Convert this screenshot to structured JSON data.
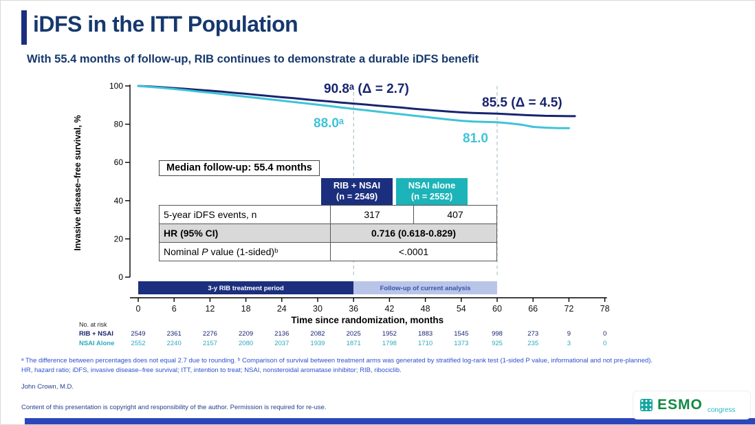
{
  "slide": {
    "title": "iDFS in the ITT Population",
    "subtitle": "With 55.4 months of follow-up, RIB continues to demonstrate a durable iDFS benefit",
    "footnotes": {
      "line1": "ᵃ The difference between percentages does not equal 2.7 due to rounding. ᵇ Comparison of survival between treatment arms was generated by stratified log-rank test (1-sided P value, informational and not pre-planned).",
      "line2": "HR, hazard ratio; iDFS, invasive disease–free survival; ITT, intention to treat; NSAI, nonsteroidal aromatase inhibitor; RIB, ribociclib."
    },
    "author": "John Crown, M.D.",
    "copyright": "Content of this presentation is copyright and responsibility of the author. Permission is required for re-use."
  },
  "summary_table": {
    "median_followup": "Median follow-up: 55.4 months",
    "columns": [
      {
        "name": "RIB + NSAI",
        "n": "(n = 2549)",
        "color": "#1b2f7e"
      },
      {
        "name": "NSAI alone",
        "n": "(n = 2552)",
        "color": "#1cb4b8"
      }
    ],
    "rows": {
      "events": {
        "label": "5-year iDFS events, n",
        "rib": "317",
        "nsai": "407"
      },
      "hr": {
        "label": "HR (95% CI)",
        "value": "0.716 (0.618-0.829)"
      },
      "pvalue": {
        "label_pre": "Nominal ",
        "label_italic": "P",
        "label_post": " value (1-sided)ᵇ",
        "value": "<.0001"
      }
    }
  },
  "chart_data": {
    "type": "line",
    "title": "Kaplan-Meier iDFS curves, ITT population",
    "xlabel": "Time since randomization, months",
    "ylabel": "Invasive disease–free survival, %",
    "xlim": [
      0,
      78
    ],
    "ylim": [
      0,
      100
    ],
    "x_ticks": [
      0,
      6,
      12,
      18,
      24,
      30,
      36,
      42,
      48,
      54,
      60,
      66,
      72,
      78
    ],
    "y_ticks": [
      0,
      20,
      40,
      60,
      80,
      100
    ],
    "landmark_months": [
      36,
      60
    ],
    "series": [
      {
        "name": "RIB + NSAI",
        "color": "#18246e",
        "points": [
          [
            0,
            100
          ],
          [
            2,
            99.7
          ],
          [
            4,
            99.3
          ],
          [
            6,
            98.9
          ],
          [
            8,
            98.5
          ],
          [
            10,
            98.0
          ],
          [
            12,
            97.5
          ],
          [
            14,
            97.0
          ],
          [
            16,
            96.4
          ],
          [
            18,
            95.9
          ],
          [
            20,
            95.3
          ],
          [
            22,
            94.7
          ],
          [
            24,
            94.1
          ],
          [
            26,
            93.6
          ],
          [
            28,
            93.0
          ],
          [
            30,
            92.4
          ],
          [
            32,
            91.9
          ],
          [
            34,
            91.3
          ],
          [
            36,
            90.8
          ],
          [
            38,
            90.3
          ],
          [
            40,
            89.7
          ],
          [
            42,
            89.2
          ],
          [
            44,
            88.7
          ],
          [
            46,
            88.1
          ],
          [
            48,
            87.6
          ],
          [
            50,
            87.1
          ],
          [
            52,
            86.6
          ],
          [
            54,
            86.2
          ],
          [
            56,
            85.9
          ],
          [
            58,
            85.7
          ],
          [
            60,
            85.5
          ],
          [
            62,
            85.2
          ],
          [
            64,
            84.9
          ],
          [
            66,
            84.6
          ],
          [
            68,
            84.4
          ],
          [
            70,
            84.3
          ],
          [
            72,
            84.2
          ],
          [
            73,
            84.2
          ]
        ]
      },
      {
        "name": "NSAI alone",
        "color": "#3fc3d8",
        "points": [
          [
            0,
            100
          ],
          [
            2,
            99.5
          ],
          [
            4,
            99.0
          ],
          [
            6,
            98.4
          ],
          [
            8,
            97.8
          ],
          [
            10,
            97.1
          ],
          [
            12,
            96.5
          ],
          [
            14,
            95.8
          ],
          [
            16,
            95.1
          ],
          [
            18,
            94.4
          ],
          [
            20,
            93.7
          ],
          [
            22,
            93.0
          ],
          [
            24,
            92.3
          ],
          [
            26,
            91.6
          ],
          [
            28,
            90.9
          ],
          [
            30,
            90.2
          ],
          [
            32,
            89.5
          ],
          [
            34,
            88.7
          ],
          [
            36,
            88.0
          ],
          [
            38,
            87.3
          ],
          [
            40,
            86.6
          ],
          [
            42,
            85.9
          ],
          [
            44,
            85.2
          ],
          [
            46,
            84.5
          ],
          [
            48,
            83.8
          ],
          [
            50,
            83.1
          ],
          [
            52,
            82.4
          ],
          [
            54,
            81.8
          ],
          [
            56,
            81.4
          ],
          [
            58,
            81.2
          ],
          [
            60,
            81.0
          ],
          [
            62,
            80.5
          ],
          [
            64,
            79.8
          ],
          [
            66,
            78.6
          ],
          [
            68,
            78.2
          ],
          [
            70,
            78.0
          ],
          [
            72,
            77.9
          ]
        ]
      }
    ],
    "annotations": [
      {
        "text": "90.8ᵃ (Δ = 2.7)",
        "series": "RIB + NSAI",
        "month": 36
      },
      {
        "text": "85.5 (Δ = 4.5)",
        "series": "RIB + NSAI",
        "month": 60
      },
      {
        "text": "88.0ᵃ",
        "series": "NSAI alone",
        "month": 36
      },
      {
        "text": "81.0",
        "series": "NSAI alone",
        "month": 60
      }
    ],
    "treatment_bars": [
      {
        "label": "3-y RIB treatment period",
        "from": 0,
        "to": 36,
        "bg": "#1b2f7e",
        "fg": "#ffffff"
      },
      {
        "label": "Follow-up of current analysis",
        "from": 36,
        "to": 60,
        "bg": "#b9c5e8",
        "fg": "#3a55a8"
      }
    ],
    "risk_table": {
      "heading": "No. at risk",
      "rows": [
        {
          "name": "RIB + NSAI",
          "color": "#18246e",
          "values": [
            "2549",
            "2361",
            "2276",
            "2209",
            "2136",
            "2082",
            "2025",
            "1952",
            "1883",
            "1545",
            "998",
            "273",
            "9",
            "0"
          ]
        },
        {
          "name": "NSAI Alone",
          "color": "#2aa9c0",
          "values": [
            "2552",
            "2240",
            "2157",
            "2080",
            "2037",
            "1939",
            "1871",
            "1798",
            "1710",
            "1373",
            "925",
            "235",
            "3",
            "0"
          ]
        }
      ]
    }
  },
  "logo": {
    "esmo": "ESMO",
    "congress": "congress"
  }
}
